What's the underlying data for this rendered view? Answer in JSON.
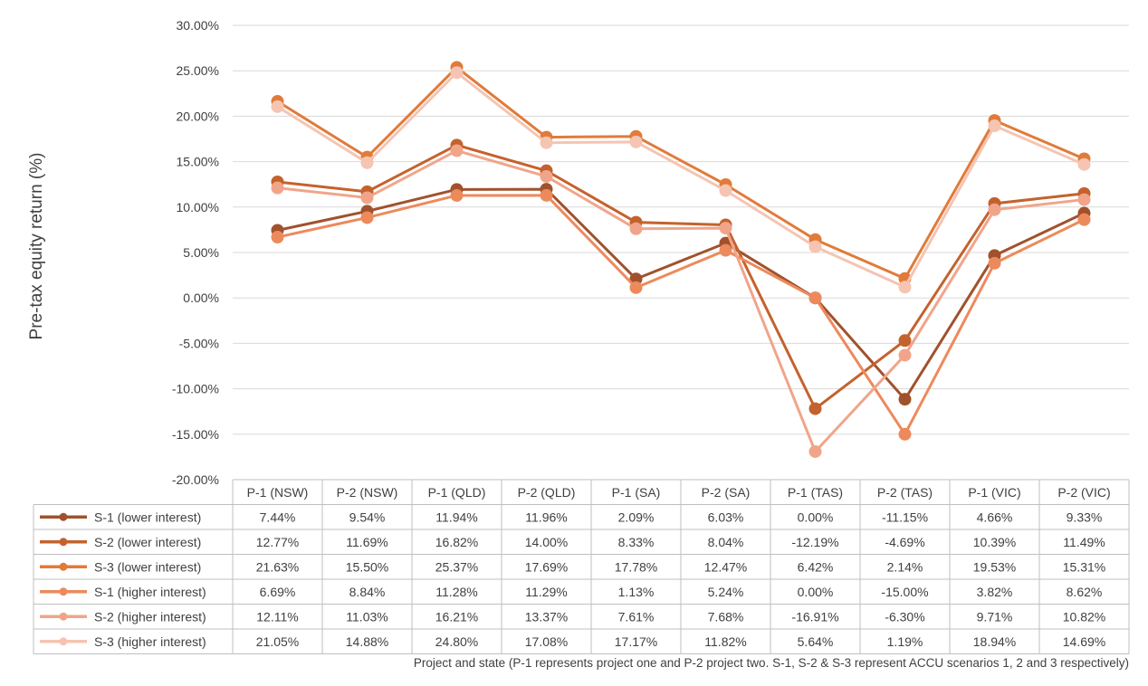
{
  "chart_data": {
    "type": "line",
    "ylabel": "Pre-tax equity return (%)",
    "xlabel": "Project and state (P-1 represents project one and P-2 project two. S-1, S-2 & S-3 represent ACCU scenarios 1, 2 and 3 respectively)",
    "categories": [
      "P-1 (NSW)",
      "P-2 (NSW)",
      "P-1 (QLD)",
      "P-2 (QLD)",
      "P-1 (SA)",
      "P-2 (SA)",
      "P-1 (TAS)",
      "P-2 (TAS)",
      "P-1 (VIC)",
      "P-2 (VIC)"
    ],
    "y_ticks": [
      "30.00%",
      "25.00%",
      "20.00%",
      "15.00%",
      "10.00%",
      "5.00%",
      "0.00%",
      "-5.00%",
      "-10.00%",
      "-15.00%",
      "-20.00%"
    ],
    "ylim": [
      -20,
      30
    ],
    "grid": true,
    "legend": "data table below chart",
    "series": [
      {
        "name": "S-1 (lower interest)",
        "color": "#a0522d",
        "values": [
          7.44,
          9.54,
          11.94,
          11.96,
          2.09,
          6.03,
          0.0,
          -11.15,
          4.66,
          9.33
        ],
        "labels": [
          "7.44%",
          "9.54%",
          "11.94%",
          "11.96%",
          "2.09%",
          "6.03%",
          "0.00%",
          "-11.15%",
          "4.66%",
          "9.33%"
        ]
      },
      {
        "name": "S-2 (lower interest)",
        "color": "#c4622d",
        "values": [
          12.77,
          11.69,
          16.82,
          14.0,
          8.33,
          8.04,
          -12.19,
          -4.69,
          10.39,
          11.49
        ],
        "labels": [
          "12.77%",
          "11.69%",
          "16.82%",
          "14.00%",
          "8.33%",
          "8.04%",
          "-12.19%",
          "-4.69%",
          "10.39%",
          "11.49%"
        ]
      },
      {
        "name": "S-3 (lower interest)",
        "color": "#e07b39",
        "values": [
          21.63,
          15.5,
          25.37,
          17.69,
          17.78,
          12.47,
          6.42,
          2.14,
          19.53,
          15.31
        ],
        "labels": [
          "21.63%",
          "15.50%",
          "25.37%",
          "17.69%",
          "17.78%",
          "12.47%",
          "6.42%",
          "2.14%",
          "19.53%",
          "15.31%"
        ]
      },
      {
        "name": "S-1 (higher interest)",
        "color": "#ec8a5c",
        "values": [
          6.69,
          8.84,
          11.28,
          11.29,
          1.13,
          5.24,
          0.0,
          -15.0,
          3.82,
          8.62
        ],
        "labels": [
          "6.69%",
          "8.84%",
          "11.28%",
          "11.29%",
          "1.13%",
          "5.24%",
          "0.00%",
          "-15.00%",
          "3.82%",
          "8.62%"
        ]
      },
      {
        "name": "S-2 (higher interest)",
        "color": "#f0a58a",
        "values": [
          12.11,
          11.03,
          16.21,
          13.37,
          7.61,
          7.68,
          -16.91,
          -6.3,
          9.71,
          10.82
        ],
        "labels": [
          "12.11%",
          "11.03%",
          "16.21%",
          "13.37%",
          "7.61%",
          "7.68%",
          "-16.91%",
          "-6.30%",
          "9.71%",
          "10.82%"
        ]
      },
      {
        "name": "S-3 (higher interest)",
        "color": "#f5c4b2",
        "values": [
          21.05,
          14.88,
          24.8,
          17.08,
          17.17,
          11.82,
          5.64,
          1.19,
          18.94,
          14.69
        ],
        "labels": [
          "21.05%",
          "14.88%",
          "24.80%",
          "17.08%",
          "17.17%",
          "11.82%",
          "5.64%",
          "1.19%",
          "18.94%",
          "14.69%"
        ]
      }
    ]
  }
}
